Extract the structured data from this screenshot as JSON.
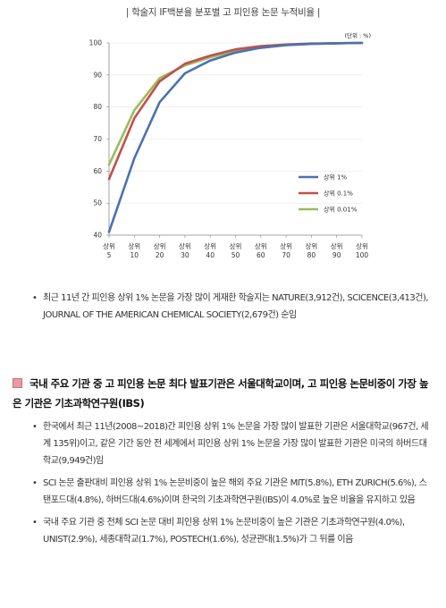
{
  "chart_data": {
    "type": "line",
    "title": "| 학술지 IF백분율 분포별 고 피인용 논문 누적비율 |",
    "unit": "(단위 : %)",
    "categories": [
      "상위 5",
      "상위 10",
      "상위 20",
      "상위 30",
      "상위 40",
      "상위 50",
      "상위 60",
      "상위 70",
      "상위 80",
      "상위 90",
      "상위 100"
    ],
    "ylim": [
      40,
      100
    ],
    "yticks": [
      40,
      50,
      60,
      70,
      80,
      90,
      100
    ],
    "legend_position": "bottom-right",
    "series": [
      {
        "name": "상위 1%",
        "color": "#4a72b0",
        "values": [
          41,
          64,
          81.5,
          90.5,
          94.5,
          97,
          98.5,
          99.3,
          99.7,
          99.9,
          100
        ]
      },
      {
        "name": "상위 0.1%",
        "color": "#c0504d",
        "values": [
          57.5,
          76.5,
          88,
          93.5,
          96,
          98,
          99,
          99.5,
          99.8,
          99.9,
          100
        ]
      },
      {
        "name": "상위 0.01%",
        "color": "#9bbb59",
        "values": [
          62,
          79,
          89,
          93,
          95.5,
          97.5,
          98.5,
          99.3,
          99.7,
          99.9,
          100
        ]
      }
    ]
  },
  "text": {
    "b1": "최근 11년 간 피인용 상위 1% 논문을 가장 많이 게재한 학술지는 NATURE(3,912건), SCICENCE(3,413건), JOURNAL OF THE AMERICAN CHEMICAL SOCIETY(2,679건) 순임",
    "heading": "국내 주요 기관 중 고 피인용 논문 최다 발표기관은 서울대학교이며, 고 피인용 논문비중이 가장 높은 기관은 기초과학연구원(IBS)",
    "b2": "한국에서 최근 11년(2008~2018)간 피인용 상위 1% 논문을 가장 많이 발표한 기관은 서울대학교(967건, 세계 135위)이고, 같은 기간 동안 전 세계에서 피인용 상위 1% 논문을 가장 많이 발표한 기관은 미국의 하버드대학교(9,949건)임",
    "b3": "SCI 논문 출판대비 피인용 상위 1% 논문비중이 높은 해외 주요 기관은 MIT(5.8%), ETH ZURICH(5.6%), 스탠포드대(4.8%), 하버드대(4.6%)이며 한국의 기초과학연구원(IBS)이 4.0%로 높은 비율을 유지하고 있음",
    "b4": "국내 주요 기관 중 전체 SCI 논문 대비 피인용 상위 1% 논문비중이 높은 기관은 기초과학연구원(4.0%), UNIST(2.9%), 세종대학교(1.7%), POSTECH(1.6%), 성균관대(1.5%)가 그 뒤를 이음"
  }
}
